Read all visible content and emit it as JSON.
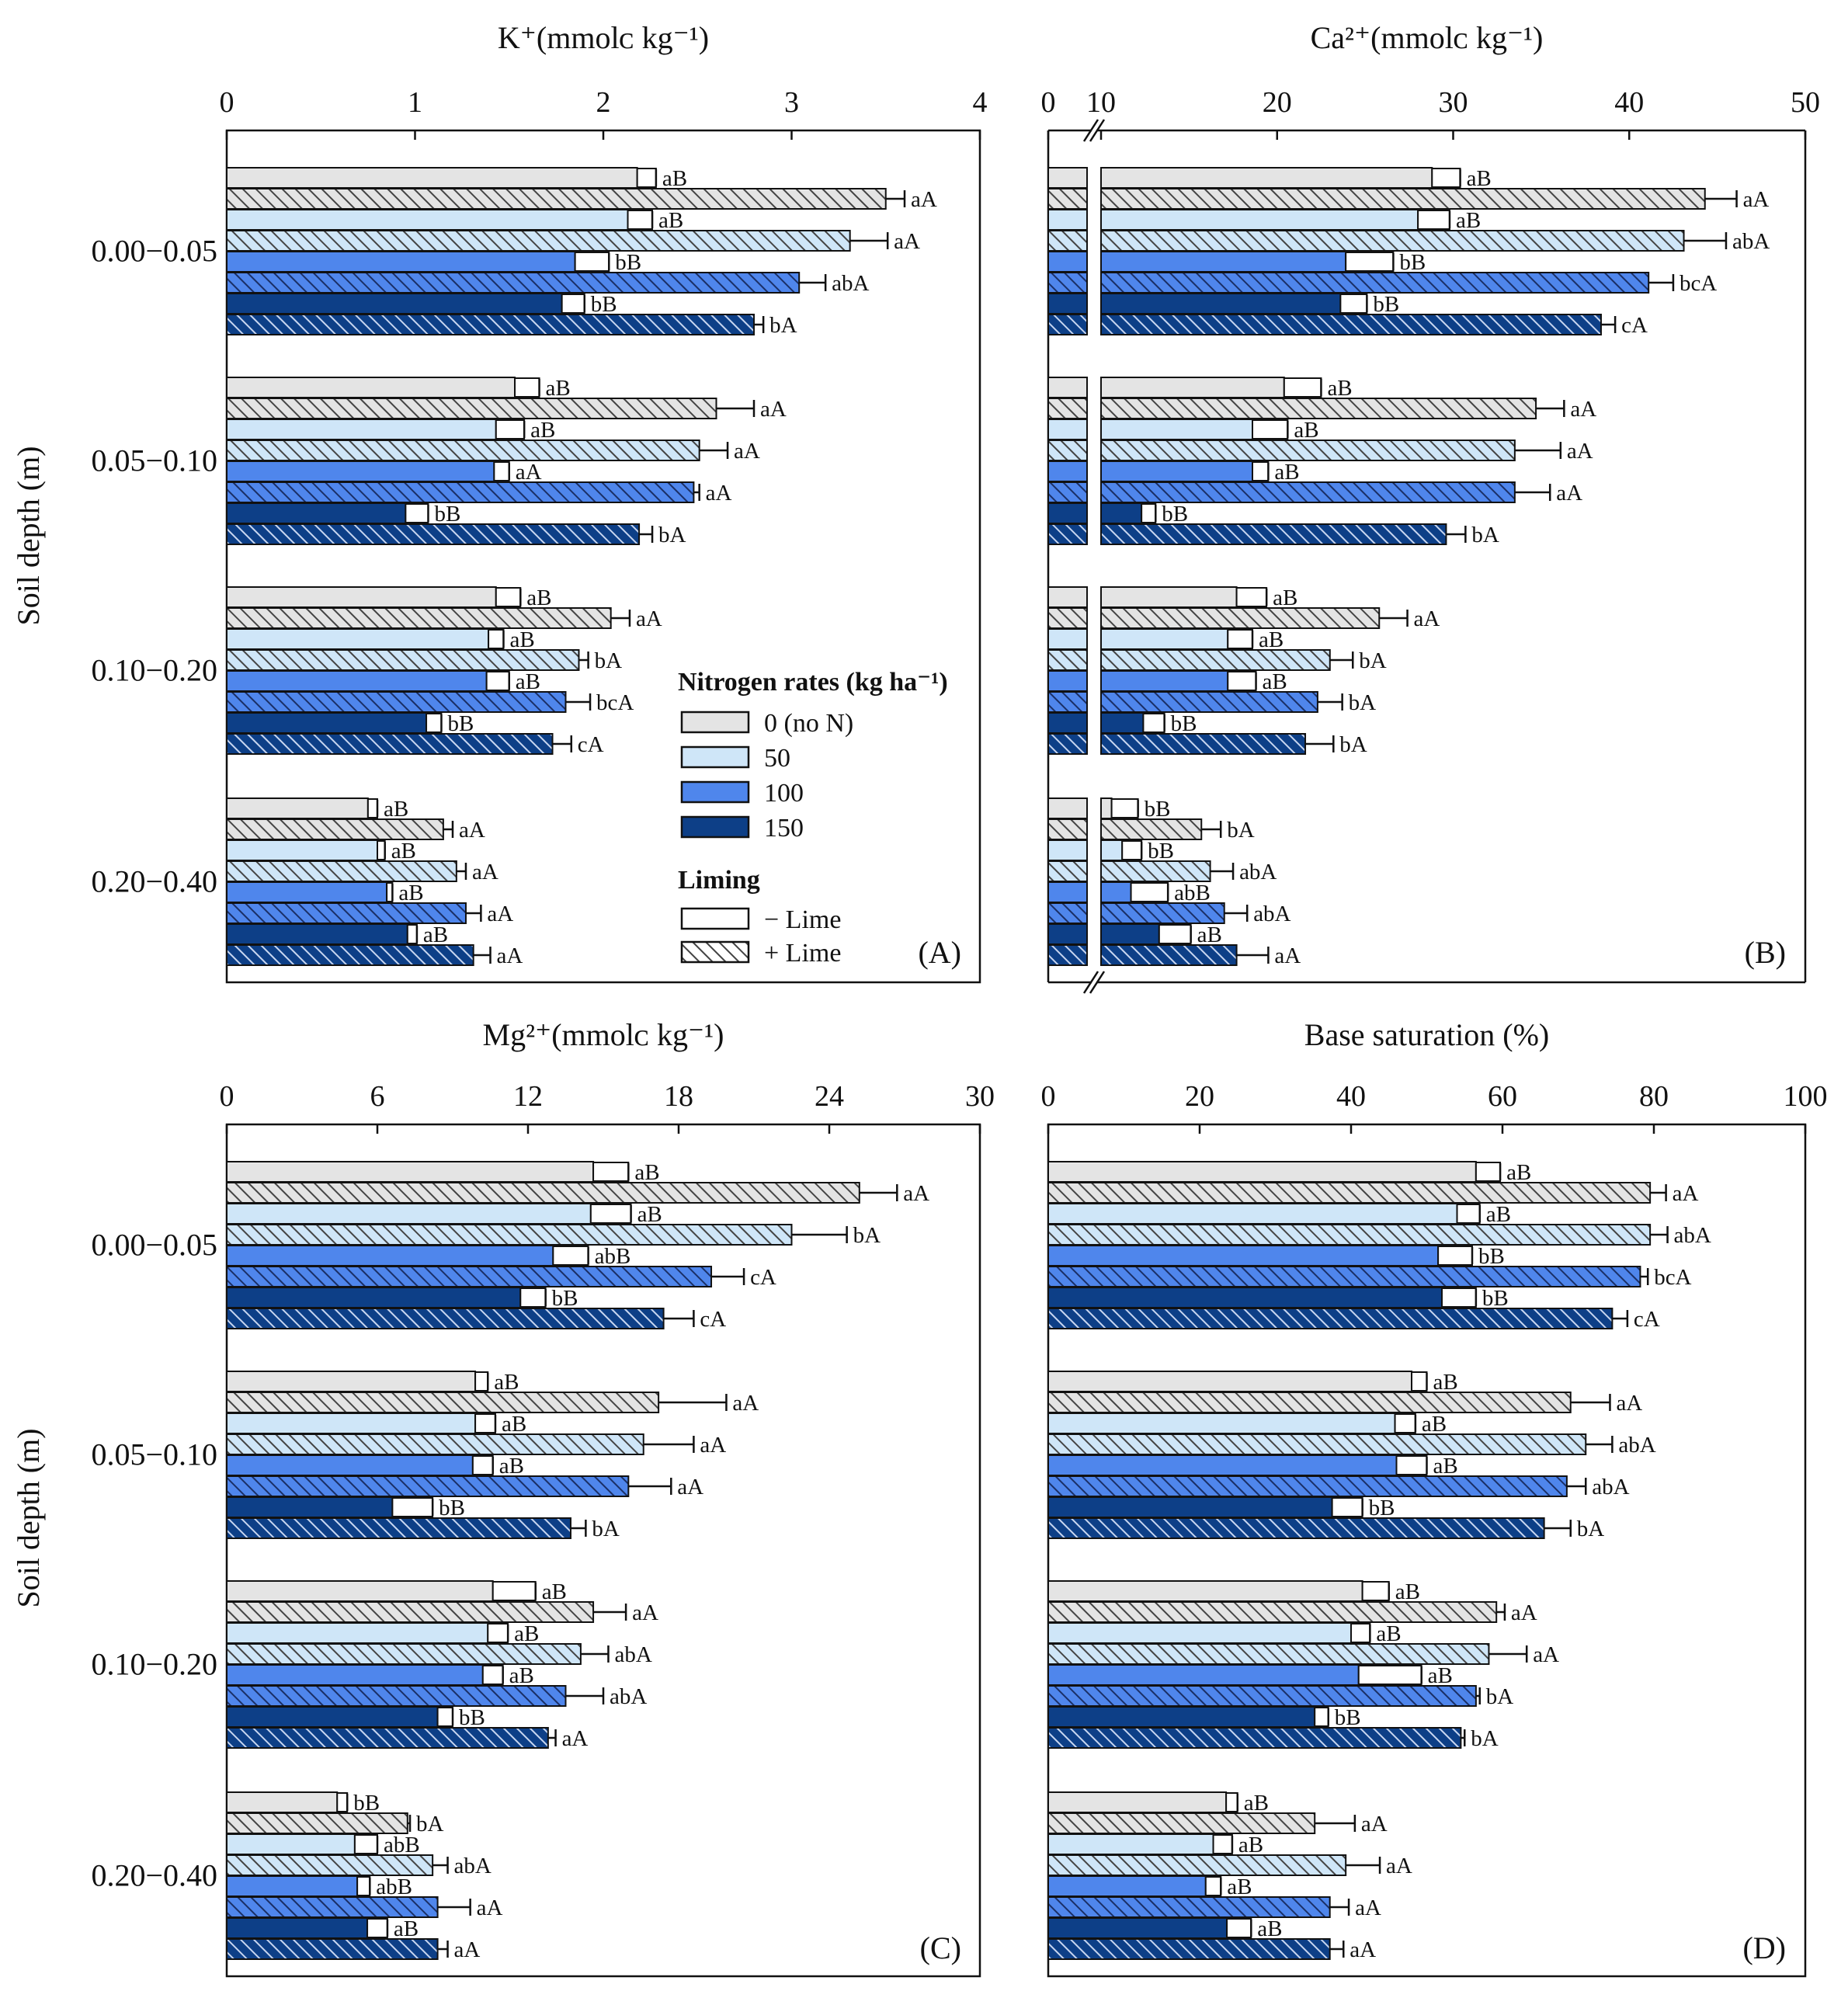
{
  "figure": {
    "y_axis_label": "Soil depth (m)",
    "depths": [
      "0.00−0.05",
      "0.05−0.10",
      "0.10−0.20",
      "0.20−0.40"
    ]
  },
  "legend": {
    "nitrogen_title": "Nitrogen rates (kg ha⁻¹)",
    "nitrogen_items": [
      "0 (no N)",
      "50",
      "100",
      "150"
    ],
    "liming_title": "Liming",
    "liming_items": [
      "− Lime",
      "+ Lime"
    ]
  },
  "colors": {
    "n0": "#e4e4e4",
    "n50": "#cfe6f8",
    "n100": "#4f86ec",
    "n150": "#0d3f87",
    "outline": "#111111"
  },
  "chart_data": [
    {
      "type": "bar",
      "panel": "(A)",
      "title": "K⁺(mmolᴄ kg⁻¹)",
      "xlim": [
        0,
        4
      ],
      "ticks": [
        0,
        1,
        2,
        3,
        4
      ],
      "categories": [
        "0.00−0.05",
        "0.05−0.10",
        "0.10−0.20",
        "0.20−0.40"
      ],
      "series": [
        {
          "name": "0 N − Lime",
          "values": [
            2.18,
            1.53,
            1.43,
            0.75
          ],
          "errors": [
            0.1,
            0.13,
            0.13,
            0.05
          ],
          "letters": [
            "aB",
            "aB",
            "aB",
            "aB"
          ]
        },
        {
          "name": "0 N + Lime",
          "values": [
            3.5,
            2.6,
            2.04,
            1.15
          ],
          "errors": [
            0.1,
            0.2,
            0.1,
            0.05
          ],
          "letters": [
            "aA",
            "aA",
            "aA",
            "aA"
          ]
        },
        {
          "name": "50 N − Lime",
          "values": [
            2.13,
            1.43,
            1.39,
            0.8
          ],
          "errors": [
            0.13,
            0.15,
            0.08,
            0.04
          ],
          "letters": [
            "aB",
            "aB",
            "aB",
            "aB"
          ]
        },
        {
          "name": "50 N + Lime",
          "values": [
            3.31,
            2.51,
            1.87,
            1.22
          ],
          "errors": [
            0.2,
            0.15,
            0.05,
            0.05
          ],
          "letters": [
            "aA",
            "aA",
            "bA",
            "aA"
          ]
        },
        {
          "name": "100 N − Lime",
          "values": [
            1.85,
            1.42,
            1.38,
            0.85
          ],
          "errors": [
            0.18,
            0.08,
            0.12,
            0.03
          ],
          "letters": [
            "bB",
            "aA",
            "aB",
            "aB"
          ]
        },
        {
          "name": "100 N + Lime",
          "values": [
            3.04,
            2.48,
            1.8,
            1.27
          ],
          "errors": [
            0.14,
            0.03,
            0.13,
            0.08
          ],
          "letters": [
            "abA",
            "aA",
            "bcA",
            "aA"
          ]
        },
        {
          "name": "150 N − Lime",
          "values": [
            1.78,
            0.95,
            1.06,
            0.96
          ],
          "errors": [
            0.12,
            0.12,
            0.08,
            0.05
          ],
          "letters": [
            "bB",
            "bB",
            "bB",
            "aB"
          ]
        },
        {
          "name": "150 N + Lime",
          "values": [
            2.8,
            2.19,
            1.73,
            1.31
          ],
          "errors": [
            0.05,
            0.07,
            0.1,
            0.09
          ],
          "letters": [
            "bA",
            "bA",
            "cA",
            "aA"
          ]
        }
      ]
    },
    {
      "type": "bar",
      "panel": "(B)",
      "title": "Ca²⁺(mmolᴄ kg⁻¹)",
      "xlim": [
        0,
        50
      ],
      "axis_break": [
        2,
        10
      ],
      "ticks": [
        0,
        10,
        20,
        30,
        40,
        50
      ],
      "categories": [
        "0.00−0.05",
        "0.05−0.10",
        "0.10−0.20",
        "0.20−0.40"
      ],
      "series": [
        {
          "name": "0 N − Lime",
          "values": [
            28.8,
            20.4,
            17.7,
            10.6
          ],
          "errors": [
            1.6,
            2.1,
            1.7,
            1.5
          ],
          "letters": [
            "aB",
            "aB",
            "aB",
            "bB"
          ]
        },
        {
          "name": "0 N + Lime",
          "values": [
            44.3,
            34.7,
            25.8,
            15.7
          ],
          "errors": [
            1.8,
            1.6,
            1.6,
            1.1
          ],
          "letters": [
            "aA",
            "aA",
            "aA",
            "bA"
          ]
        },
        {
          "name": "50 N − Lime",
          "values": [
            28.0,
            18.6,
            17.2,
            11.2
          ],
          "errors": [
            1.8,
            2.0,
            1.4,
            1.1
          ],
          "letters": [
            "aB",
            "aB",
            "aB",
            "bB"
          ]
        },
        {
          "name": "50 N + Lime",
          "values": [
            43.1,
            33.5,
            23.0,
            16.2
          ],
          "errors": [
            2.4,
            2.6,
            1.3,
            1.3
          ],
          "letters": [
            "abA",
            "aA",
            "bA",
            "abA"
          ]
        },
        {
          "name": "100 N − Lime",
          "values": [
            23.9,
            18.6,
            17.2,
            11.7
          ],
          "errors": [
            2.7,
            0.9,
            1.6,
            2.1
          ],
          "letters": [
            "bB",
            "aB",
            "aB",
            "abB"
          ]
        },
        {
          "name": "100 N + Lime",
          "values": [
            41.1,
            33.5,
            22.3,
            17.0
          ],
          "errors": [
            1.4,
            2.0,
            1.4,
            1.3
          ],
          "letters": [
            "bcA",
            "aA",
            "bA",
            "abA"
          ]
        },
        {
          "name": "150 N − Lime",
          "values": [
            23.6,
            12.3,
            12.4,
            13.3
          ],
          "errors": [
            1.5,
            0.8,
            1.2,
            1.8
          ],
          "letters": [
            "bB",
            "bB",
            "bB",
            "aB"
          ]
        },
        {
          "name": "150 N + Lime",
          "values": [
            38.4,
            29.6,
            21.6,
            17.7
          ],
          "errors": [
            0.8,
            1.1,
            1.6,
            1.8
          ],
          "letters": [
            "cA",
            "bA",
            "bA",
            "aA"
          ]
        }
      ]
    },
    {
      "type": "bar",
      "panel": "(C)",
      "title": "Mg²⁺(mmolᴄ kg⁻¹)",
      "xlim": [
        0,
        30
      ],
      "ticks": [
        0,
        6,
        12,
        18,
        24,
        30
      ],
      "categories": [
        "0.00−0.05",
        "0.05−0.10",
        "0.10−0.20",
        "0.20−0.40"
      ],
      "series": [
        {
          "name": "0 N − Lime",
          "values": [
            14.6,
            9.9,
            10.6,
            4.4
          ],
          "errors": [
            1.4,
            0.5,
            1.7,
            0.4
          ],
          "letters": [
            "aB",
            "aB",
            "aB",
            "bB"
          ]
        },
        {
          "name": "0 N + Lime",
          "values": [
            25.2,
            17.2,
            14.6,
            7.2
          ],
          "errors": [
            1.5,
            2.7,
            1.3,
            0.1
          ],
          "letters": [
            "aA",
            "aA",
            "aA",
            "bA"
          ]
        },
        {
          "name": "50 N − Lime",
          "values": [
            14.5,
            9.9,
            10.4,
            5.1
          ],
          "errors": [
            1.6,
            0.8,
            0.8,
            0.9
          ],
          "letters": [
            "aB",
            "aB",
            "aB",
            "abB"
          ]
        },
        {
          "name": "50 N + Lime",
          "values": [
            22.5,
            16.6,
            14.1,
            8.2
          ],
          "errors": [
            2.2,
            2.0,
            1.1,
            0.6
          ],
          "letters": [
            "bA",
            "aA",
            "abA",
            "abA"
          ]
        },
        {
          "name": "100 N − Lime",
          "values": [
            13.0,
            9.8,
            10.2,
            5.2
          ],
          "errors": [
            1.4,
            0.8,
            0.8,
            0.5
          ],
          "letters": [
            "abB",
            "aB",
            "aB",
            "abB"
          ]
        },
        {
          "name": "100 N + Lime",
          "values": [
            19.3,
            16.0,
            13.5,
            8.4
          ],
          "errors": [
            1.3,
            1.7,
            1.5,
            1.3
          ],
          "letters": [
            "cA",
            "aA",
            "abA",
            "aA"
          ]
        },
        {
          "name": "150 N − Lime",
          "values": [
            11.7,
            6.6,
            8.4,
            5.6
          ],
          "errors": [
            1.0,
            1.6,
            0.6,
            0.8
          ],
          "letters": [
            "bB",
            "bB",
            "bB",
            "aB"
          ]
        },
        {
          "name": "150 N + Lime",
          "values": [
            17.4,
            13.7,
            12.8,
            8.4
          ],
          "errors": [
            1.2,
            0.6,
            0.3,
            0.4
          ],
          "letters": [
            "cA",
            "bA",
            "aA",
            "aA"
          ]
        }
      ]
    },
    {
      "type": "bar",
      "panel": "(D)",
      "title": "Base saturation (%)",
      "xlim": [
        0,
        100
      ],
      "ticks": [
        0,
        20,
        40,
        60,
        80,
        100
      ],
      "categories": [
        "0.00−0.05",
        "0.05−0.10",
        "0.10−0.20",
        "0.20−0.40"
      ],
      "series": [
        {
          "name": "0 N − Lime",
          "values": [
            56.5,
            48.0,
            41.5,
            23.5
          ],
          "errors": [
            3.2,
            2.0,
            3.5,
            1.5
          ],
          "letters": [
            "aB",
            "aB",
            "aB",
            "aB"
          ]
        },
        {
          "name": "0 N + Lime",
          "values": [
            79.5,
            69.0,
            59.2,
            35.2
          ],
          "errors": [
            2.1,
            5.2,
            1.1,
            5.3
          ],
          "letters": [
            "aA",
            "aA",
            "aA",
            "aA"
          ]
        },
        {
          "name": "50 N − Lime",
          "values": [
            54.0,
            45.8,
            40.0,
            21.8
          ],
          "errors": [
            3.0,
            2.7,
            2.5,
            2.5
          ],
          "letters": [
            "aB",
            "aB",
            "aB",
            "aB"
          ]
        },
        {
          "name": "50 N + Lime",
          "values": [
            79.5,
            71.0,
            58.2,
            39.3
          ],
          "errors": [
            2.3,
            3.5,
            5.0,
            4.5
          ],
          "letters": [
            "abA",
            "abA",
            "aA",
            "aA"
          ]
        },
        {
          "name": "100 N − Lime",
          "values": [
            51.5,
            46.0,
            41.0,
            20.8
          ],
          "errors": [
            4.5,
            4.0,
            8.3,
            2.0
          ],
          "letters": [
            "bB",
            "aB",
            "aB",
            "aB"
          ]
        },
        {
          "name": "100 N + Lime",
          "values": [
            78.2,
            68.5,
            56.5,
            37.2
          ],
          "errors": [
            1.0,
            2.5,
            0.5,
            2.5
          ],
          "letters": [
            "bcA",
            "abA",
            "bA",
            "aA"
          ]
        },
        {
          "name": "150 N − Lime",
          "values": [
            52.0,
            37.5,
            35.2,
            23.6
          ],
          "errors": [
            4.5,
            4.0,
            1.8,
            3.2
          ],
          "letters": [
            "bB",
            "bB",
            "bB",
            "aB"
          ]
        },
        {
          "name": "150 N + Lime",
          "values": [
            74.5,
            65.5,
            54.5,
            37.2
          ],
          "errors": [
            2.0,
            3.5,
            0.5,
            1.8
          ],
          "letters": [
            "cA",
            "bA",
            "bA",
            "aA"
          ]
        }
      ]
    }
  ]
}
